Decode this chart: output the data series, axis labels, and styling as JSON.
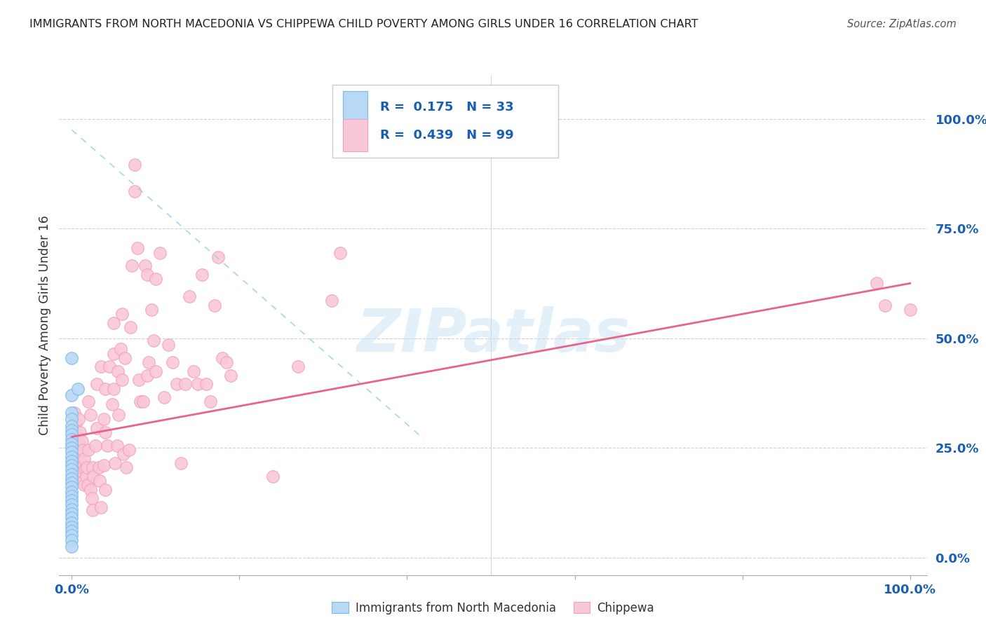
{
  "title": "IMMIGRANTS FROM NORTH MACEDONIA VS CHIPPEWA CHILD POVERTY AMONG GIRLS UNDER 16 CORRELATION CHART",
  "source": "Source: ZipAtlas.com",
  "ylabel": "Child Poverty Among Girls Under 16",
  "yticks_labels": [
    "0.0%",
    "25.0%",
    "50.0%",
    "75.0%",
    "100.0%"
  ],
  "ytick_vals": [
    0.0,
    0.25,
    0.5,
    0.75,
    1.0
  ],
  "watermark": "ZIPatlas",
  "blue_color": "#7bb8e8",
  "blue_fill": "#b8d9f5",
  "pink_color": "#f4a0b8",
  "pink_fill": "#f9c8d8",
  "blue_line_color": "#99cce8",
  "pink_line_color": "#e8648c",
  "xlim": [
    -0.015,
    1.02
  ],
  "ylim": [
    -0.04,
    1.1
  ],
  "blue_trend_x": [
    0.0,
    0.42
  ],
  "blue_trend_y": [
    0.975,
    0.27
  ],
  "pink_trend_x": [
    0.0,
    1.0
  ],
  "pink_trend_y": [
    0.275,
    0.625
  ],
  "blue_scatter": [
    [
      0.0,
      0.455
    ],
    [
      0.0,
      0.37
    ],
    [
      0.0,
      0.33
    ],
    [
      0.0,
      0.315
    ],
    [
      0.0,
      0.3
    ],
    [
      0.0,
      0.29
    ],
    [
      0.0,
      0.28
    ],
    [
      0.0,
      0.27
    ],
    [
      0.0,
      0.26
    ],
    [
      0.0,
      0.25
    ],
    [
      0.0,
      0.24
    ],
    [
      0.0,
      0.23
    ],
    [
      0.0,
      0.22
    ],
    [
      0.0,
      0.21
    ],
    [
      0.0,
      0.2
    ],
    [
      0.0,
      0.19
    ],
    [
      0.0,
      0.18
    ],
    [
      0.0,
      0.17
    ],
    [
      0.0,
      0.16
    ],
    [
      0.0,
      0.15
    ],
    [
      0.0,
      0.14
    ],
    [
      0.0,
      0.13
    ],
    [
      0.0,
      0.12
    ],
    [
      0.0,
      0.11
    ],
    [
      0.0,
      0.1
    ],
    [
      0.0,
      0.09
    ],
    [
      0.0,
      0.08
    ],
    [
      0.0,
      0.07
    ],
    [
      0.0,
      0.06
    ],
    [
      0.0,
      0.05
    ],
    [
      0.0,
      0.04
    ],
    [
      0.0,
      0.025
    ],
    [
      0.007,
      0.385
    ]
  ],
  "pink_scatter": [
    [
      0.003,
      0.33
    ],
    [
      0.005,
      0.305
    ],
    [
      0.006,
      0.28
    ],
    [
      0.007,
      0.255
    ],
    [
      0.008,
      0.315
    ],
    [
      0.008,
      0.265
    ],
    [
      0.009,
      0.23
    ],
    [
      0.01,
      0.285
    ],
    [
      0.01,
      0.225
    ],
    [
      0.011,
      0.205
    ],
    [
      0.012,
      0.265
    ],
    [
      0.012,
      0.195
    ],
    [
      0.013,
      0.245
    ],
    [
      0.014,
      0.175
    ],
    [
      0.015,
      0.225
    ],
    [
      0.015,
      0.165
    ],
    [
      0.016,
      0.2
    ],
    [
      0.017,
      0.185
    ],
    [
      0.018,
      0.205
    ],
    [
      0.019,
      0.165
    ],
    [
      0.02,
      0.355
    ],
    [
      0.02,
      0.245
    ],
    [
      0.022,
      0.325
    ],
    [
      0.022,
      0.155
    ],
    [
      0.024,
      0.135
    ],
    [
      0.025,
      0.205
    ],
    [
      0.025,
      0.108
    ],
    [
      0.026,
      0.185
    ],
    [
      0.028,
      0.255
    ],
    [
      0.03,
      0.395
    ],
    [
      0.03,
      0.295
    ],
    [
      0.032,
      0.205
    ],
    [
      0.033,
      0.175
    ],
    [
      0.035,
      0.435
    ],
    [
      0.035,
      0.115
    ],
    [
      0.038,
      0.315
    ],
    [
      0.038,
      0.21
    ],
    [
      0.04,
      0.385
    ],
    [
      0.04,
      0.285
    ],
    [
      0.04,
      0.155
    ],
    [
      0.042,
      0.255
    ],
    [
      0.045,
      0.435
    ],
    [
      0.048,
      0.35
    ],
    [
      0.05,
      0.535
    ],
    [
      0.05,
      0.465
    ],
    [
      0.05,
      0.385
    ],
    [
      0.052,
      0.215
    ],
    [
      0.054,
      0.255
    ],
    [
      0.055,
      0.425
    ],
    [
      0.056,
      0.325
    ],
    [
      0.058,
      0.475
    ],
    [
      0.06,
      0.555
    ],
    [
      0.06,
      0.405
    ],
    [
      0.062,
      0.235
    ],
    [
      0.063,
      0.455
    ],
    [
      0.065,
      0.205
    ],
    [
      0.068,
      0.245
    ],
    [
      0.07,
      0.525
    ],
    [
      0.072,
      0.665
    ],
    [
      0.075,
      0.895
    ],
    [
      0.075,
      0.835
    ],
    [
      0.078,
      0.705
    ],
    [
      0.08,
      0.405
    ],
    [
      0.082,
      0.355
    ],
    [
      0.085,
      0.355
    ],
    [
      0.088,
      0.665
    ],
    [
      0.09,
      0.415
    ],
    [
      0.09,
      0.645
    ],
    [
      0.092,
      0.445
    ],
    [
      0.095,
      0.565
    ],
    [
      0.098,
      0.495
    ],
    [
      0.1,
      0.635
    ],
    [
      0.1,
      0.425
    ],
    [
      0.105,
      0.695
    ],
    [
      0.11,
      0.365
    ],
    [
      0.115,
      0.485
    ],
    [
      0.12,
      0.445
    ],
    [
      0.125,
      0.395
    ],
    [
      0.13,
      0.215
    ],
    [
      0.135,
      0.395
    ],
    [
      0.14,
      0.595
    ],
    [
      0.145,
      0.425
    ],
    [
      0.15,
      0.395
    ],
    [
      0.155,
      0.645
    ],
    [
      0.16,
      0.395
    ],
    [
      0.165,
      0.355
    ],
    [
      0.17,
      0.575
    ],
    [
      0.175,
      0.685
    ],
    [
      0.18,
      0.455
    ],
    [
      0.185,
      0.445
    ],
    [
      0.19,
      0.415
    ],
    [
      0.24,
      0.185
    ],
    [
      0.27,
      0.435
    ],
    [
      0.31,
      0.585
    ],
    [
      0.32,
      0.695
    ],
    [
      0.96,
      0.625
    ],
    [
      0.97,
      0.575
    ],
    [
      1.0,
      0.565
    ]
  ]
}
